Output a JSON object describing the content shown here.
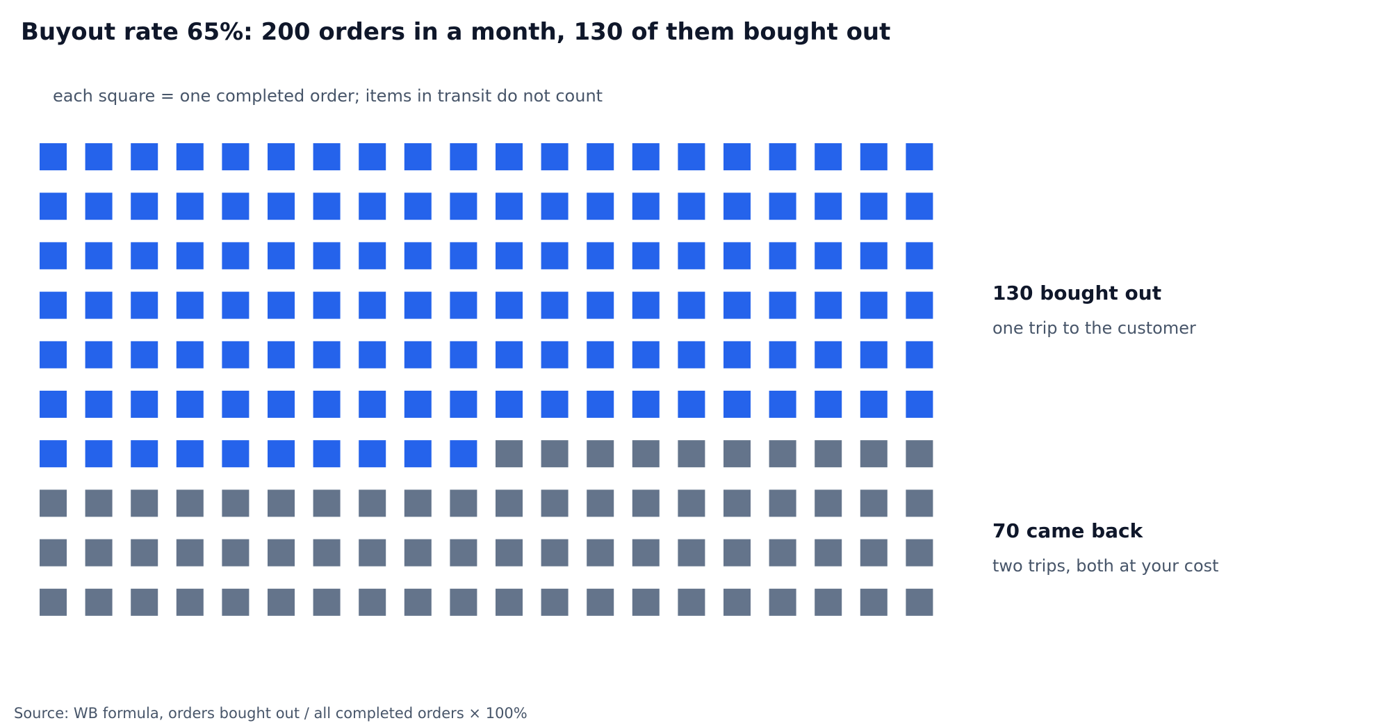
{
  "chart_data": {
    "type": "waffle",
    "title": "Buyout rate 65%: 200 orders in a month, 130 of them bought out",
    "subtitle": "each square = one completed order; items in transit do not count",
    "grid": {
      "columns": 20,
      "rows": 10
    },
    "total": 200,
    "categories": [
      {
        "name": "bought out",
        "value": 130,
        "color": "#2563eb",
        "label": "130 bought out",
        "note": "one trip to the customer"
      },
      {
        "name": "came back",
        "value": 70,
        "color": "#64748b",
        "label": "70 came back",
        "note": "two trips, both at your cost"
      }
    ],
    "source": "Source: WB formula, orders bought out / all completed orders × 100%"
  }
}
